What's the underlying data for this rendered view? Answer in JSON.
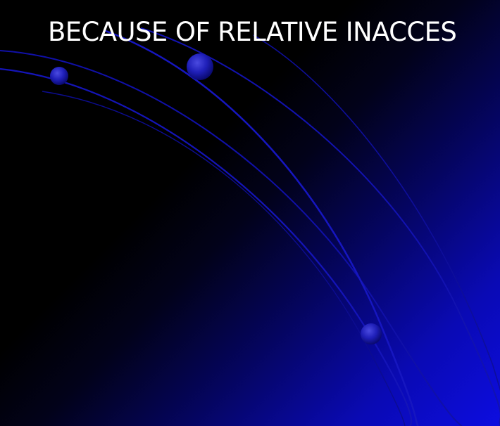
{
  "slide": {
    "title": "BECAUSE OF RELATIVE INACCES",
    "colors": {
      "background": "#000000",
      "accent_blue": "#1818c8",
      "orb": "#2020b8"
    },
    "decorations": [
      "arc-lines",
      "orb-dots"
    ]
  }
}
